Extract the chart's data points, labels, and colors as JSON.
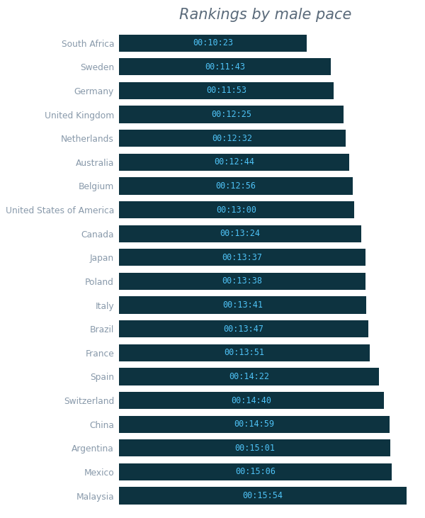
{
  "title": "Rankings by male pace",
  "title_color": "#5a6a7a",
  "title_fontsize": 15,
  "categories": [
    "South Africa",
    "Sweden",
    "Germany",
    "United Kingdom",
    "Netherlands",
    "Australia",
    "Belgium",
    "United States of America",
    "Canada",
    "Japan",
    "Poland",
    "Italy",
    "Brazil",
    "France",
    "Spain",
    "Switzerland",
    "China",
    "Argentina",
    "Mexico",
    "Malaysia"
  ],
  "labels": [
    "00:10:23",
    "00:11:43",
    "00:11:53",
    "00:12:25",
    "00:12:32",
    "00:12:44",
    "00:12:56",
    "00:13:00",
    "00:13:24",
    "00:13:37",
    "00:13:38",
    "00:13:41",
    "00:13:47",
    "00:13:51",
    "00:14:22",
    "00:14:40",
    "00:14:59",
    "00:15:01",
    "00:15:06",
    "00:15:54"
  ],
  "values_seconds": [
    623,
    703,
    713,
    745,
    752,
    764,
    776,
    780,
    804,
    817,
    818,
    821,
    827,
    831,
    862,
    880,
    899,
    901,
    906,
    954
  ],
  "bar_color": "#0d3340",
  "label_color": "#4fc3f7",
  "category_color": "#8899aa",
  "background_color": "#ffffff",
  "bar_height": 0.72,
  "gap_color": "#ffffff"
}
